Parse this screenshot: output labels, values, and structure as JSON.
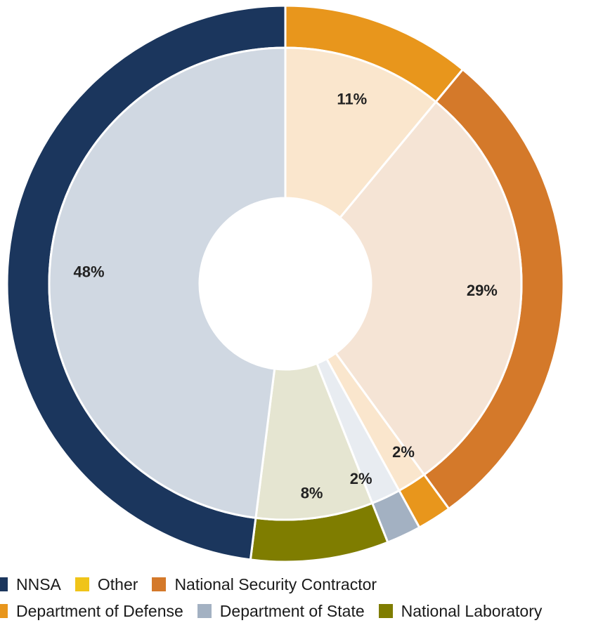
{
  "chart_data": {
    "type": "pie",
    "variant": "donut-with-outer-ring",
    "slices": [
      {
        "label": "11%",
        "value": 11,
        "category": "Department of Defense",
        "color": "#e8961c",
        "fill": "#fae6cd"
      },
      {
        "label": "29%",
        "value": 29,
        "category": "National Security Contractor",
        "color": "#d4792a",
        "fill": "#f5e4d5"
      },
      {
        "label": "2%",
        "value": 2,
        "category": "Department of Defense",
        "color": "#e8961c",
        "fill": "#fae6cd"
      },
      {
        "label": "2%",
        "value": 2,
        "category": "Department of State",
        "color": "#a3b1c2",
        "fill": "#e8ecf1"
      },
      {
        "label": "8%",
        "value": 8,
        "category": "National Laboratory",
        "color": "#7f7d00",
        "fill": "#e5e5d1"
      },
      {
        "label": "48%",
        "value": 48,
        "category": "NNSA",
        "color": "#1b365d",
        "fill": "#d0d8e2"
      }
    ],
    "legend": {
      "rows": [
        [
          {
            "label": "NNSA",
            "color": "#1b365d"
          },
          {
            "label": "Other",
            "color": "#f0c419"
          },
          {
            "label": "National Security Contractor",
            "color": "#d4792a"
          }
        ],
        [
          {
            "label": "Department of Defense",
            "color": "#e8961c"
          },
          {
            "label": "Department of State",
            "color": "#a3b1c2"
          },
          {
            "label": "National Laboratory",
            "color": "#7f7d00"
          }
        ]
      ]
    }
  }
}
